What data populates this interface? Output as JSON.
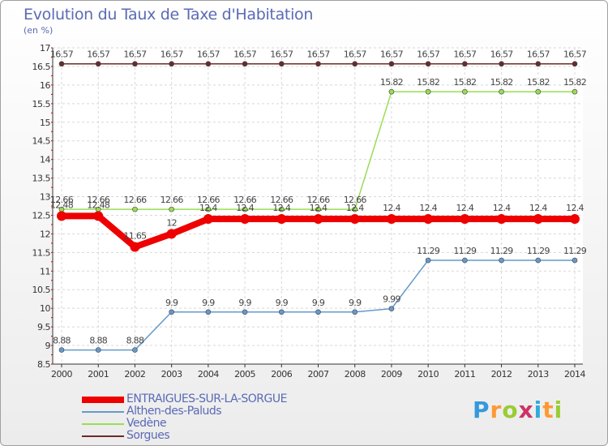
{
  "header": {
    "title": "Evolution du Taux de Taxe d'Habitation",
    "subtitle": "(en %)"
  },
  "chart_data": {
    "type": "line",
    "x": [
      2000,
      2001,
      2002,
      2003,
      2004,
      2005,
      2006,
      2007,
      2008,
      2009,
      2010,
      2011,
      2012,
      2013,
      2014
    ],
    "ylim": [
      8.5,
      17
    ],
    "yticks": [
      8.5,
      9,
      9.5,
      10,
      10.5,
      11,
      11.5,
      12,
      12.5,
      13,
      13.5,
      14,
      14.5,
      15,
      15.5,
      16,
      16.5,
      17
    ],
    "grid": true,
    "legend_position": "bottom-left",
    "series": [
      {
        "name": "Sorgues",
        "color": "#6b2a2a",
        "values": [
          16.57,
          16.57,
          16.57,
          16.57,
          16.57,
          16.57,
          16.57,
          16.57,
          16.57,
          16.57,
          16.57,
          16.57,
          16.57,
          16.57,
          16.57
        ],
        "labels": [
          "16.57",
          "16.57",
          "16.57",
          "16.57",
          "16.57",
          "16.57",
          "16.57",
          "16.57",
          "16.57",
          "16.57",
          "16.57",
          "16.57",
          "16.57",
          "16.57",
          "16.57"
        ]
      },
      {
        "name": "Vedène",
        "color": "#99dd55",
        "values": [
          12.66,
          12.66,
          12.66,
          12.66,
          12.66,
          12.66,
          12.66,
          12.66,
          12.66,
          15.82,
          15.82,
          15.82,
          15.82,
          15.82,
          15.82
        ],
        "labels": [
          "12.66",
          "12.66",
          "12.66",
          "12.66",
          "12.66",
          "12.66",
          "12.66",
          "12.66",
          "12.66",
          "15.82",
          "15.82",
          "15.82",
          "15.82",
          "15.82",
          "15.82"
        ]
      },
      {
        "name": "Althen-des-Paluds",
        "color": "#6699cc",
        "values": [
          8.88,
          8.88,
          8.88,
          9.9,
          9.9,
          9.9,
          9.9,
          9.9,
          9.9,
          9.99,
          11.29,
          11.29,
          11.29,
          11.29,
          11.29
        ],
        "labels": [
          "8.88",
          "8.88",
          "8.88",
          "9.9",
          "9.9",
          "9.9",
          "9.9",
          "9.9",
          "9.9",
          "9.99",
          "11.29",
          "11.29",
          "11.29",
          "11.29",
          "11.29"
        ]
      },
      {
        "name": "ENTRAIGUES-SUR-LA-SORGUE",
        "color": "#ee0000",
        "values": [
          12.48,
          12.48,
          11.65,
          12,
          12.4,
          12.4,
          12.4,
          12.4,
          12.4,
          12.4,
          12.4,
          12.4,
          12.4,
          12.4,
          12.4
        ],
        "labels": [
          "12.48",
          "12.48",
          "11.65",
          "12",
          "12.4",
          "12.4",
          "12.4",
          "12.4",
          "12.4",
          "12.4",
          "12.4",
          "12.4",
          "12.4",
          "12.4",
          "12.4"
        ]
      }
    ]
  },
  "legend": {
    "items": [
      {
        "label": "ENTRAIGUES-SUR-LA-SORGUE",
        "color": "#ee0000",
        "thick": true
      },
      {
        "label": "Althen-des-Paluds",
        "color": "#6699cc",
        "thick": false
      },
      {
        "label": "Vedène",
        "color": "#99dd55",
        "thick": false
      },
      {
        "label": "Sorgues",
        "color": "#6b2a2a",
        "thick": false
      }
    ]
  },
  "logo": {
    "letters": [
      "P",
      "r",
      "o",
      "x",
      "i",
      "t",
      "i"
    ],
    "colors": [
      "#3399dd",
      "#ff9933",
      "#99cc33",
      "#cc3366",
      "#33aadd",
      "#ff9933",
      "#99cc33"
    ]
  }
}
